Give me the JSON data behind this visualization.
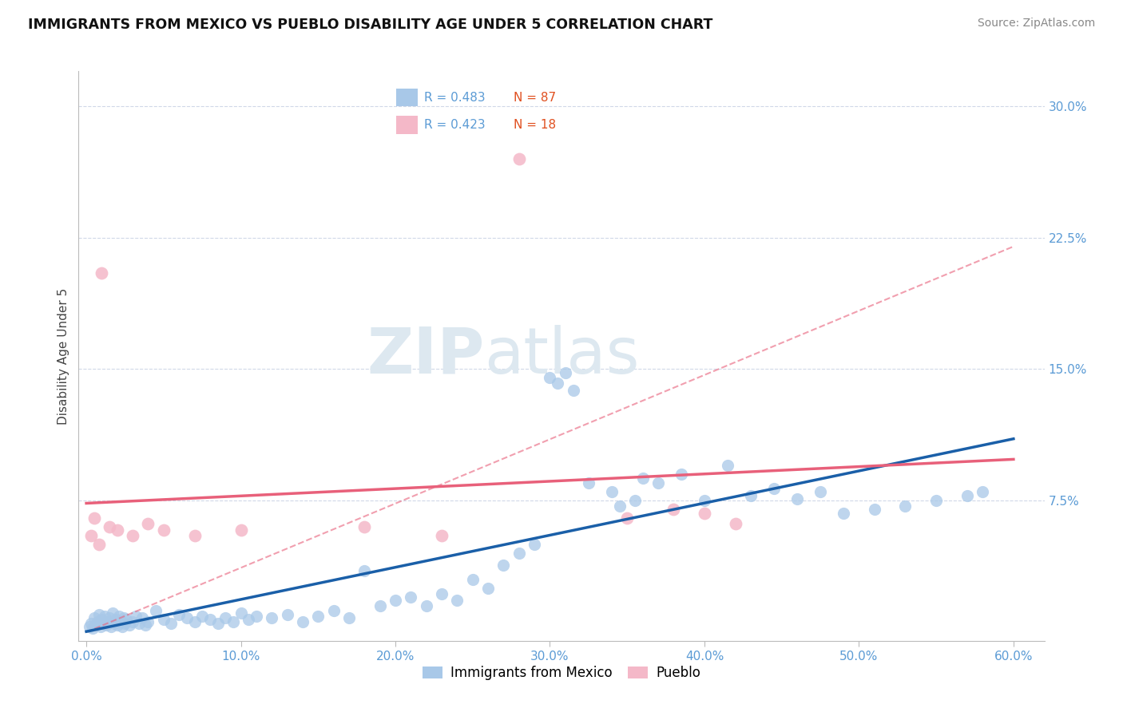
{
  "title": "IMMIGRANTS FROM MEXICO VS PUEBLO DISABILITY AGE UNDER 5 CORRELATION CHART",
  "source": "Source: ZipAtlas.com",
  "ylabel": "Disability Age Under 5",
  "xticklabels": [
    "0.0%",
    "10.0%",
    "20.0%",
    "30.0%",
    "40.0%",
    "50.0%",
    "60.0%"
  ],
  "xticks": [
    0.0,
    10.0,
    20.0,
    30.0,
    40.0,
    50.0,
    60.0
  ],
  "yticklabels": [
    "7.5%",
    "15.0%",
    "22.5%",
    "30.0%"
  ],
  "yticks": [
    7.5,
    15.0,
    22.5,
    30.0
  ],
  "xlim": [
    -0.5,
    62
  ],
  "ylim": [
    -0.5,
    32
  ],
  "blue_scatter_color": "#a8c8e8",
  "pink_scatter_color": "#f4b8c8",
  "blue_line_color": "#1a5fa8",
  "pink_solid_line_color": "#e8607a",
  "pink_dash_line_color": "#e8607a",
  "tick_color": "#5b9bd5",
  "grid_color": "#d0d8e8",
  "legend_r_color": "#5b9bd5",
  "legend_n_color": "#e05020",
  "watermark_color": "#dde8f0",
  "blue_scatter_x": [
    0.2,
    0.3,
    0.4,
    0.5,
    0.6,
    0.7,
    0.8,
    0.9,
    1.0,
    1.1,
    1.2,
    1.3,
    1.4,
    1.5,
    1.6,
    1.7,
    1.8,
    1.9,
    2.0,
    2.1,
    2.2,
    2.3,
    2.4,
    2.5,
    2.6,
    2.8,
    3.0,
    3.2,
    3.4,
    3.6,
    3.8,
    4.0,
    4.5,
    5.0,
    5.5,
    6.0,
    6.5,
    7.0,
    7.5,
    8.0,
    8.5,
    9.0,
    9.5,
    10.0,
    10.5,
    11.0,
    12.0,
    13.0,
    14.0,
    15.0,
    16.0,
    17.0,
    18.0,
    19.0,
    20.0,
    21.0,
    22.0,
    23.0,
    24.0,
    25.0,
    26.0,
    27.0,
    28.0,
    29.0,
    30.0,
    31.0,
    32.5,
    34.0,
    35.5,
    37.0,
    38.5,
    40.0,
    41.5,
    43.0,
    44.5,
    46.0,
    47.5,
    49.0,
    51.0,
    53.0,
    55.0,
    57.0,
    58.0,
    30.5,
    31.5,
    34.5,
    36.0
  ],
  "blue_scatter_y": [
    0.3,
    0.5,
    0.2,
    0.8,
    0.4,
    0.6,
    1.0,
    0.3,
    0.7,
    0.5,
    0.9,
    0.4,
    0.6,
    0.8,
    0.3,
    1.1,
    0.5,
    0.7,
    0.4,
    0.9,
    0.6,
    0.3,
    0.8,
    0.5,
    0.7,
    0.4,
    0.6,
    0.9,
    0.5,
    0.8,
    0.4,
    0.6,
    1.2,
    0.7,
    0.5,
    1.0,
    0.8,
    0.6,
    0.9,
    0.7,
    0.5,
    0.8,
    0.6,
    1.1,
    0.7,
    0.9,
    0.8,
    1.0,
    0.6,
    0.9,
    1.2,
    0.8,
    3.5,
    1.5,
    1.8,
    2.0,
    1.5,
    2.2,
    1.8,
    3.0,
    2.5,
    3.8,
    4.5,
    5.0,
    14.5,
    14.8,
    8.5,
    8.0,
    7.5,
    8.5,
    9.0,
    7.5,
    9.5,
    7.8,
    8.2,
    7.6,
    8.0,
    6.8,
    7.0,
    7.2,
    7.5,
    7.8,
    8.0,
    14.2,
    13.8,
    7.2,
    8.8
  ],
  "pink_scatter_x": [
    0.3,
    0.5,
    0.8,
    1.0,
    1.5,
    2.0,
    3.0,
    4.0,
    5.0,
    7.0,
    10.0,
    18.0,
    23.0,
    28.0,
    35.0,
    38.0,
    40.0,
    42.0
  ],
  "pink_scatter_y": [
    5.5,
    6.5,
    5.0,
    20.5,
    6.0,
    5.8,
    5.5,
    6.2,
    5.8,
    5.5,
    5.8,
    6.0,
    5.5,
    27.0,
    6.5,
    7.0,
    6.8,
    6.2
  ],
  "bottom_legend_blue": "Immigrants from Mexico",
  "bottom_legend_pink": "Pueblo"
}
